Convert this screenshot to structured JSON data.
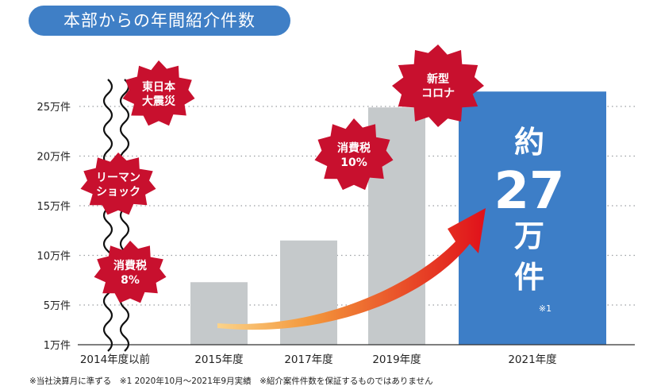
{
  "chart_data": {
    "type": "bar",
    "title": "本部からの年間紹介件数",
    "categories": [
      "2014年度以前",
      "2015年度",
      "2017年度",
      "2019年度",
      "2021年度"
    ],
    "values": [
      null,
      7.3,
      11.5,
      24.9,
      26.5
    ],
    "value_unit": "万件",
    "yaxis": {
      "ticks": [
        1,
        5,
        10,
        15,
        20,
        25
      ],
      "tick_labels": [
        "1万件",
        "5万件",
        "10万件",
        "15万件",
        "20万件",
        "25万件"
      ],
      "ylim": [
        1,
        27.5
      ],
      "grid": "dotted"
    },
    "highlight": {
      "category": "2021年度",
      "color": "#3d7ec7",
      "prefix": "約",
      "number": "27",
      "unit_1": "万",
      "unit_2": "件",
      "footnote_mark": "※1"
    },
    "bar_color": "#c5c9cb",
    "events": [
      {
        "name": "east-japan-earthquake",
        "lines": [
          "東日本",
          "大震災"
        ]
      },
      {
        "name": "lehman-shock",
        "lines": [
          "リーマン",
          "ショック"
        ]
      },
      {
        "name": "consumption-tax-8",
        "lines": [
          "消費税",
          "8%"
        ]
      },
      {
        "name": "consumption-tax-10",
        "lines": [
          "消費税",
          "10%"
        ]
      },
      {
        "name": "covid",
        "lines": [
          "新型",
          "コロナ"
        ]
      }
    ],
    "burst_color": "#c8102e",
    "footnote": "※当社決算月に準ずる　※1 2020年10月～2021年9月実績　※紹介案件件数を保証するものではありません"
  }
}
